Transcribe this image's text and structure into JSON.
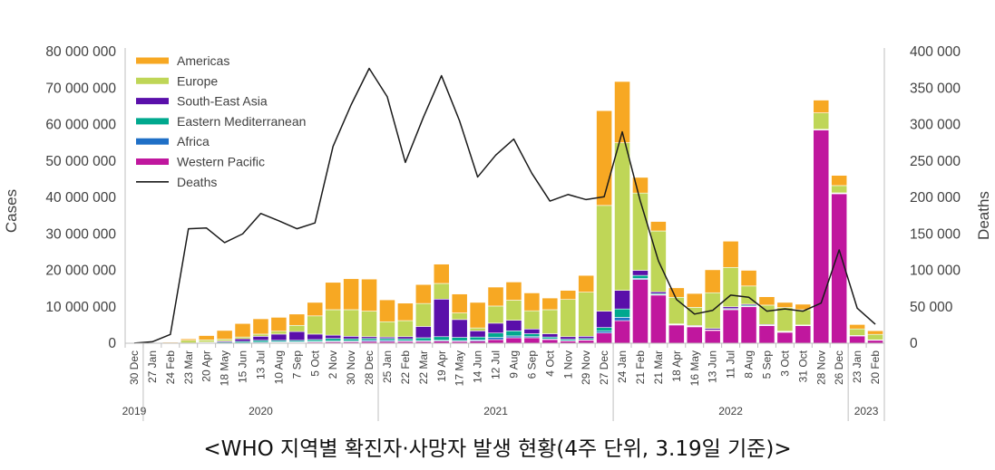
{
  "caption": "<WHO 지역별 확진자·사망자 발생 현황(4주 단위, 3.19일 기준)>",
  "chart_data": {
    "type": "bar",
    "stacked": true,
    "title": "",
    "ylabel": "Cases",
    "y2label": "Deaths",
    "ylim": [
      0,
      80000000
    ],
    "y2lim": [
      0,
      400000
    ],
    "yticks": [
      "0",
      "10 000 000",
      "20 000 000",
      "30 000 000",
      "40 000 000",
      "50 000 000",
      "60 000 000",
      "70 000 000",
      "80 000 000"
    ],
    "y2ticks": [
      "0",
      "50 000",
      "100 000",
      "150 000",
      "200 000",
      "250 000",
      "300 000",
      "350 000",
      "400 000"
    ],
    "legend_position": "top-left",
    "categories": [
      "30 Dec",
      "27 Jan",
      "24 Feb",
      "23 Mar",
      "20 Apr",
      "18 May",
      "15 Jun",
      "13 Jul",
      "10 Aug",
      "7 Sep",
      "5 Oct",
      "2 Nov",
      "30 Nov",
      "28 Dec",
      "25 Jan",
      "22 Feb",
      "22 Mar",
      "19 Apr",
      "17 May",
      "14 Jun",
      "12 Jul",
      "9 Aug",
      "6 Sep",
      "4 Oct",
      "1 Nov",
      "29 Nov",
      "27 Dec",
      "24 Jan",
      "21 Feb",
      "21 Mar",
      "18 Apr",
      "16 May",
      "13 Jun",
      "11 Jul",
      "8 Aug",
      "5 Sep",
      "3 Oct",
      "31 Oct",
      "28 Nov",
      "26 Dec",
      "23 Jan",
      "20 Feb"
    ],
    "years": [
      {
        "label": "2019",
        "from": 0,
        "to": 0
      },
      {
        "label": "2020",
        "from": 1,
        "to": 13
      },
      {
        "label": "2021",
        "from": 14,
        "to": 26
      },
      {
        "label": "2022",
        "from": 27,
        "to": 39
      },
      {
        "label": "2023",
        "from": 40,
        "to": 41
      }
    ],
    "series": [
      {
        "name": "Western Pacific",
        "color": "#C0179E",
        "values": [
          0,
          0,
          0,
          0,
          0,
          0,
          0,
          100000,
          200000,
          200000,
          300000,
          400000,
          400000,
          500000,
          500000,
          500000,
          500000,
          600000,
          500000,
          600000,
          1000000,
          1500000,
          1500000,
          1000000,
          600000,
          800000,
          2800000,
          6200000,
          17500000,
          13200000,
          5000000,
          4500000,
          3500000,
          9200000,
          10000000,
          4800000,
          3000000,
          4800000,
          58500000,
          41000000,
          2000000,
          800000
        ]
      },
      {
        "name": "Africa",
        "color": "#1F6FC6",
        "values": [
          0,
          0,
          0,
          0,
          0,
          0,
          100000,
          200000,
          200000,
          200000,
          200000,
          200000,
          200000,
          300000,
          300000,
          200000,
          200000,
          200000,
          200000,
          300000,
          600000,
          500000,
          300000,
          200000,
          100000,
          100000,
          500000,
          900000,
          300000,
          100000,
          50000,
          50000,
          50000,
          100000,
          100000,
          50000,
          50000,
          50000,
          50000,
          50000,
          30000,
          30000
        ]
      },
      {
        "name": "Eastern Mediterranean",
        "color": "#00A88E",
        "values": [
          0,
          0,
          0,
          100000,
          200000,
          300000,
          400000,
          500000,
          400000,
          400000,
          500000,
          700000,
          600000,
          500000,
          500000,
          500000,
          800000,
          1000000,
          900000,
          800000,
          1200000,
          1400000,
          800000,
          500000,
          400000,
          400000,
          1000000,
          2300000,
          800000,
          300000,
          150000,
          100000,
          100000,
          200000,
          300000,
          100000,
          100000,
          50000,
          50000,
          100000,
          50000,
          50000
        ]
      },
      {
        "name": "South-East Asia",
        "color": "#5A0FAA",
        "values": [
          0,
          0,
          0,
          0,
          100000,
          300000,
          700000,
          1100000,
          1700000,
          2400000,
          1500000,
          900000,
          700000,
          500000,
          400000,
          600000,
          3100000,
          10300000,
          4900000,
          1700000,
          2700000,
          2900000,
          1300000,
          900000,
          700000,
          600000,
          4500000,
          5100000,
          1400000,
          500000,
          100000,
          200000,
          400000,
          500000,
          300000,
          200000,
          150000,
          100000,
          100000,
          100000,
          50000,
          50000
        ]
      },
      {
        "name": "Europe",
        "color": "#BFD657",
        "values": [
          0,
          0,
          100000,
          700000,
          600000,
          500000,
          500000,
          600000,
          800000,
          1700000,
          5000000,
          7000000,
          7300000,
          7000000,
          4200000,
          4400000,
          6300000,
          4300000,
          1800000,
          800000,
          4700000,
          5500000,
          5000000,
          6600000,
          10200000,
          12100000,
          29000000,
          40500000,
          21200000,
          16700000,
          7300000,
          5000000,
          9800000,
          10800000,
          5000000,
          5300000,
          6500000,
          4200000,
          4500000,
          2000000,
          1800000,
          1500000
        ]
      },
      {
        "name": "Americas",
        "color": "#F7A823",
        "values": [
          0,
          0,
          200000,
          400000,
          1200000,
          2400000,
          3700000,
          4200000,
          3800000,
          3100000,
          3700000,
          7500000,
          8500000,
          8800000,
          6000000,
          4800000,
          5200000,
          5300000,
          5200000,
          7000000,
          5200000,
          5000000,
          4900000,
          3200000,
          2500000,
          4600000,
          26000000,
          16800000,
          4300000,
          2600000,
          2600000,
          3800000,
          6300000,
          7200000,
          4300000,
          2300000,
          1400000,
          1500000,
          3500000,
          2800000,
          1200000,
          1000000
        ]
      }
    ],
    "deaths": {
      "name": "Deaths",
      "color": "#1A1A1A",
      "values": [
        100,
        2000,
        12000,
        157000,
        158000,
        138000,
        150000,
        178000,
        168000,
        157000,
        165000,
        270000,
        327000,
        377000,
        338000,
        248000,
        310000,
        367000,
        305000,
        228000,
        258000,
        280000,
        233000,
        195000,
        204000,
        197000,
        201000,
        290000,
        195000,
        113000,
        60000,
        40000,
        45000,
        66000,
        63000,
        44000,
        47000,
        44000,
        55000,
        128000,
        48000,
        26000
      ]
    }
  }
}
